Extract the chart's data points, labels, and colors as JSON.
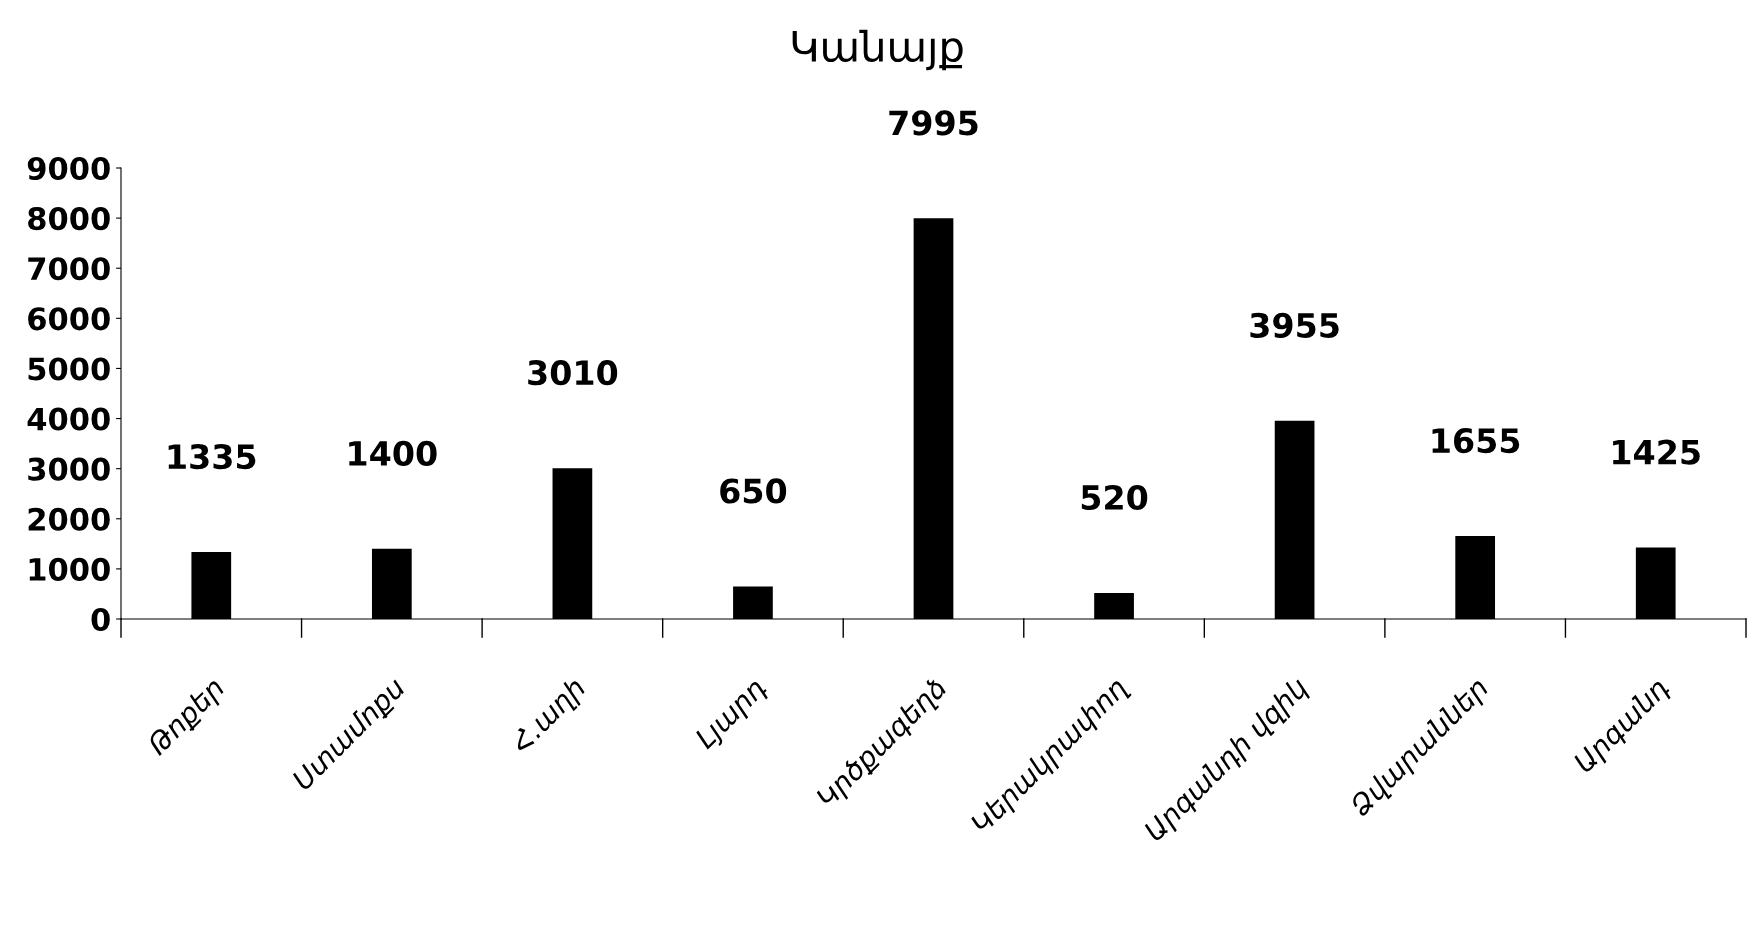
{
  "chart_data": {
    "type": "bar",
    "title": "Կանայք",
    "categories": [
      "Թոքեր",
      "Ստամոքս",
      "Հ.աղի",
      "Լյարդ",
      "Կրծքագեղձ",
      "Կերակրափող",
      "Արգանդի վզիկ",
      "Ձվարաններ",
      "Արգանդ"
    ],
    "values": [
      1335,
      1400,
      3010,
      650,
      7995,
      520,
      3955,
      1655,
      1425
    ],
    "color": "#000000",
    "ylim": [
      0,
      9000
    ],
    "yticks": [
      0,
      1000,
      2000,
      3000,
      4000,
      5000,
      6000,
      7000,
      8000,
      9000
    ],
    "data_labels": true,
    "grid": false,
    "legend": false
  }
}
